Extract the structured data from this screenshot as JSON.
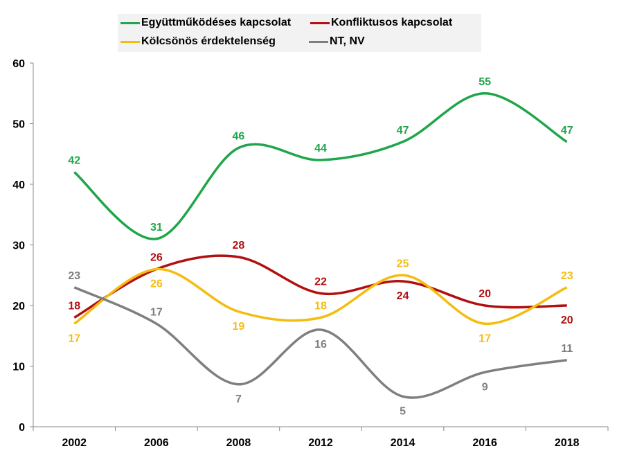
{
  "chart_data": {
    "type": "line",
    "title": "",
    "xlabel": "",
    "ylabel": "",
    "categories": [
      "2002",
      "2006",
      "2008",
      "2012",
      "2014",
      "2016",
      "2018"
    ],
    "ylim": [
      0,
      60
    ],
    "yticks": [
      0,
      10,
      20,
      30,
      40,
      50,
      60
    ],
    "grid": false,
    "legend_position": "top",
    "series": [
      {
        "name": "Együttműködéses kapcsolat",
        "color": "#1fa64a",
        "values": [
          42,
          31,
          46,
          44,
          47,
          55,
          47
        ]
      },
      {
        "name": "Konfliktusos kapcsolat",
        "color": "#b30f0f",
        "values": [
          18,
          26,
          28,
          22,
          24,
          20,
          20
        ]
      },
      {
        "name": "Kölcsönös érdektelenség",
        "color": "#f5bc10",
        "values": [
          17,
          26,
          19,
          18,
          25,
          17,
          23
        ]
      },
      {
        "name": "NT, NV",
        "color": "#7f7f7f",
        "values": [
          23,
          17,
          7,
          16,
          5,
          9,
          11
        ]
      }
    ]
  }
}
